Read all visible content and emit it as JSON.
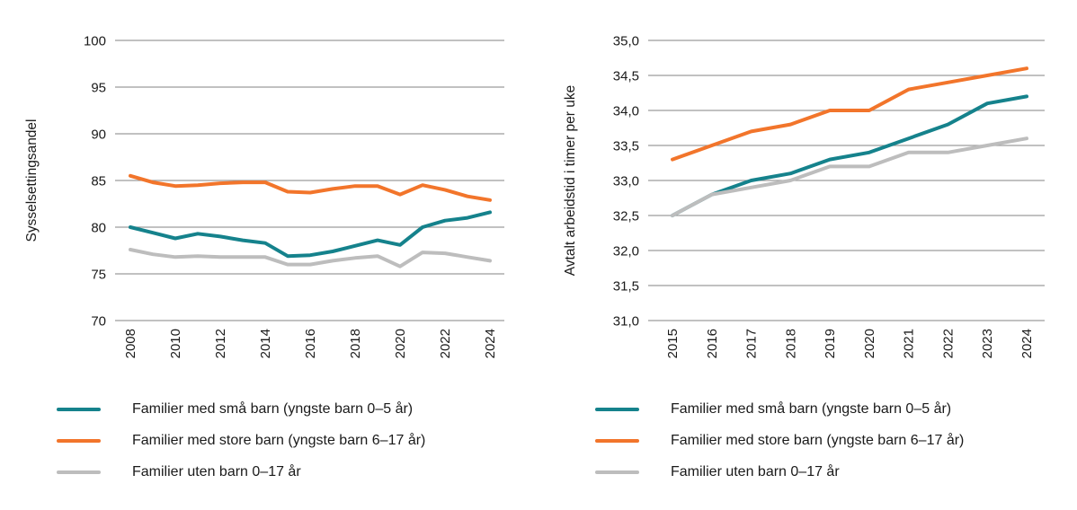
{
  "page": {
    "background": "#ffffff"
  },
  "colors": {
    "teal": "#15828c",
    "orange": "#f2752b",
    "gray": "#bdbdbd",
    "gridline": "#9c9c9c",
    "text": "#1a1a1a"
  },
  "chart_data": [
    {
      "type": "line",
      "title": "",
      "xlabel": "",
      "ylabel": "Sysselsettingsandel",
      "ylim": [
        70,
        100
      ],
      "grid": true,
      "legend_position": "bottom",
      "x": [
        2008,
        2009,
        2010,
        2011,
        2012,
        2013,
        2014,
        2015,
        2016,
        2017,
        2018,
        2019,
        2020,
        2021,
        2022,
        2023,
        2024
      ],
      "x_tick_values": [
        2008,
        2010,
        2012,
        2014,
        2016,
        2018,
        2020,
        2022,
        2024
      ],
      "x_tick_labels": [
        "2008",
        "2010",
        "2012",
        "2014",
        "2016",
        "2018",
        "2020",
        "2022",
        "2024"
      ],
      "y_tick_values": [
        100,
        95,
        90,
        85,
        80,
        75,
        70
      ],
      "y_tick_labels": [
        "100",
        "95",
        "90",
        "85",
        "80",
        "75",
        "70"
      ],
      "series": [
        {
          "name": "Familier med små barn (yngste barn 0–5 år)",
          "color_key": "teal",
          "values": [
            80.0,
            79.4,
            78.8,
            79.3,
            79.0,
            78.6,
            78.3,
            76.9,
            77.0,
            77.4,
            78.0,
            78.6,
            78.1,
            80.0,
            80.7,
            81.0,
            81.6
          ]
        },
        {
          "name": "Familier med store barn (yngste barn 6–17 år)",
          "color_key": "orange",
          "values": [
            85.5,
            84.8,
            84.4,
            84.5,
            84.7,
            84.8,
            84.8,
            83.8,
            83.7,
            84.1,
            84.4,
            84.4,
            83.5,
            84.5,
            84.0,
            83.3,
            82.9
          ]
        },
        {
          "name": "Familier uten barn 0–17 år",
          "color_key": "gray",
          "values": [
            77.6,
            77.1,
            76.8,
            76.9,
            76.8,
            76.8,
            76.8,
            76.0,
            76.0,
            76.4,
            76.7,
            76.9,
            75.8,
            77.3,
            77.2,
            76.8,
            76.4
          ]
        }
      ]
    },
    {
      "type": "line",
      "title": "",
      "xlabel": "",
      "ylabel": "Avtalt arbeidstid i timer per uke",
      "ylim": [
        31,
        35
      ],
      "grid": true,
      "legend_position": "bottom",
      "x": [
        2015,
        2016,
        2017,
        2018,
        2019,
        2020,
        2021,
        2022,
        2023,
        2024
      ],
      "x_tick_values": [
        2015,
        2016,
        2017,
        2018,
        2019,
        2020,
        2021,
        2022,
        2023,
        2024
      ],
      "x_tick_labels": [
        "2015",
        "2016",
        "2017",
        "2018",
        "2019",
        "2020",
        "2021",
        "2022",
        "2023",
        "2024"
      ],
      "y_tick_values": [
        35.0,
        34.5,
        34.0,
        33.5,
        33.0,
        32.5,
        32.0,
        31.5,
        31.0
      ],
      "y_tick_labels": [
        "35,0",
        "34,5",
        "34,0",
        "33,5",
        "33,0",
        "32,5",
        "32,0",
        "31,5",
        "31,0"
      ],
      "series": [
        {
          "name": "Familier med små barn (yngste barn 0–5 år)",
          "color_key": "teal",
          "values": [
            32.5,
            32.8,
            33.0,
            33.1,
            33.3,
            33.4,
            33.6,
            33.8,
            34.1,
            34.2
          ]
        },
        {
          "name": "Familier med store barn (yngste barn 6–17 år)",
          "color_key": "orange",
          "values": [
            33.3,
            33.5,
            33.7,
            33.8,
            34.0,
            34.0,
            34.3,
            34.4,
            34.5,
            34.6
          ]
        },
        {
          "name": "Familier uten barn 0–17 år",
          "color_key": "gray",
          "values": [
            32.5,
            32.8,
            32.9,
            33.0,
            33.2,
            33.2,
            33.4,
            33.4,
            33.5,
            33.6
          ]
        }
      ]
    }
  ]
}
